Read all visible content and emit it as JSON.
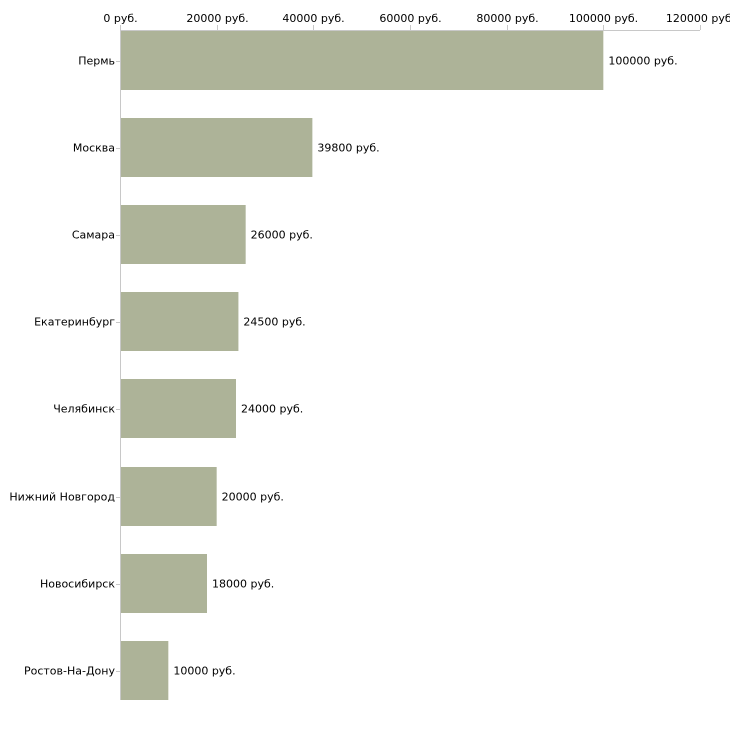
{
  "chart_data": {
    "type": "bar",
    "orientation": "horizontal",
    "title": "",
    "xlabel": "",
    "ylabel": "",
    "xlim": [
      0,
      120000
    ],
    "x_ticks": [
      0,
      20000,
      40000,
      60000,
      80000,
      100000,
      120000
    ],
    "tick_labels": [
      "0 руб.",
      "20000 руб.",
      "40000 руб.",
      "60000 руб.",
      "80000 руб.",
      "100000 руб.",
      "120000 руб."
    ],
    "axis_position": "top",
    "grid": false,
    "legend": "none",
    "categories": [
      "Пермь",
      "Москва",
      "Самара",
      "Екатеринбург",
      "Челябинск",
      "Нижний Новгород",
      "Новосибирск",
      "Ростов-На-Дону"
    ],
    "values": [
      100000,
      39800,
      26000,
      24500,
      24000,
      20000,
      18000,
      10000
    ],
    "value_labels": [
      "100000 руб.",
      "39800 руб.",
      "26000 руб.",
      "24500 руб.",
      "24000 руб.",
      "20000 руб.",
      "18000 руб.",
      "10000 руб."
    ],
    "bar_color": "#adb398",
    "axis_color": "#c8c8c8"
  }
}
